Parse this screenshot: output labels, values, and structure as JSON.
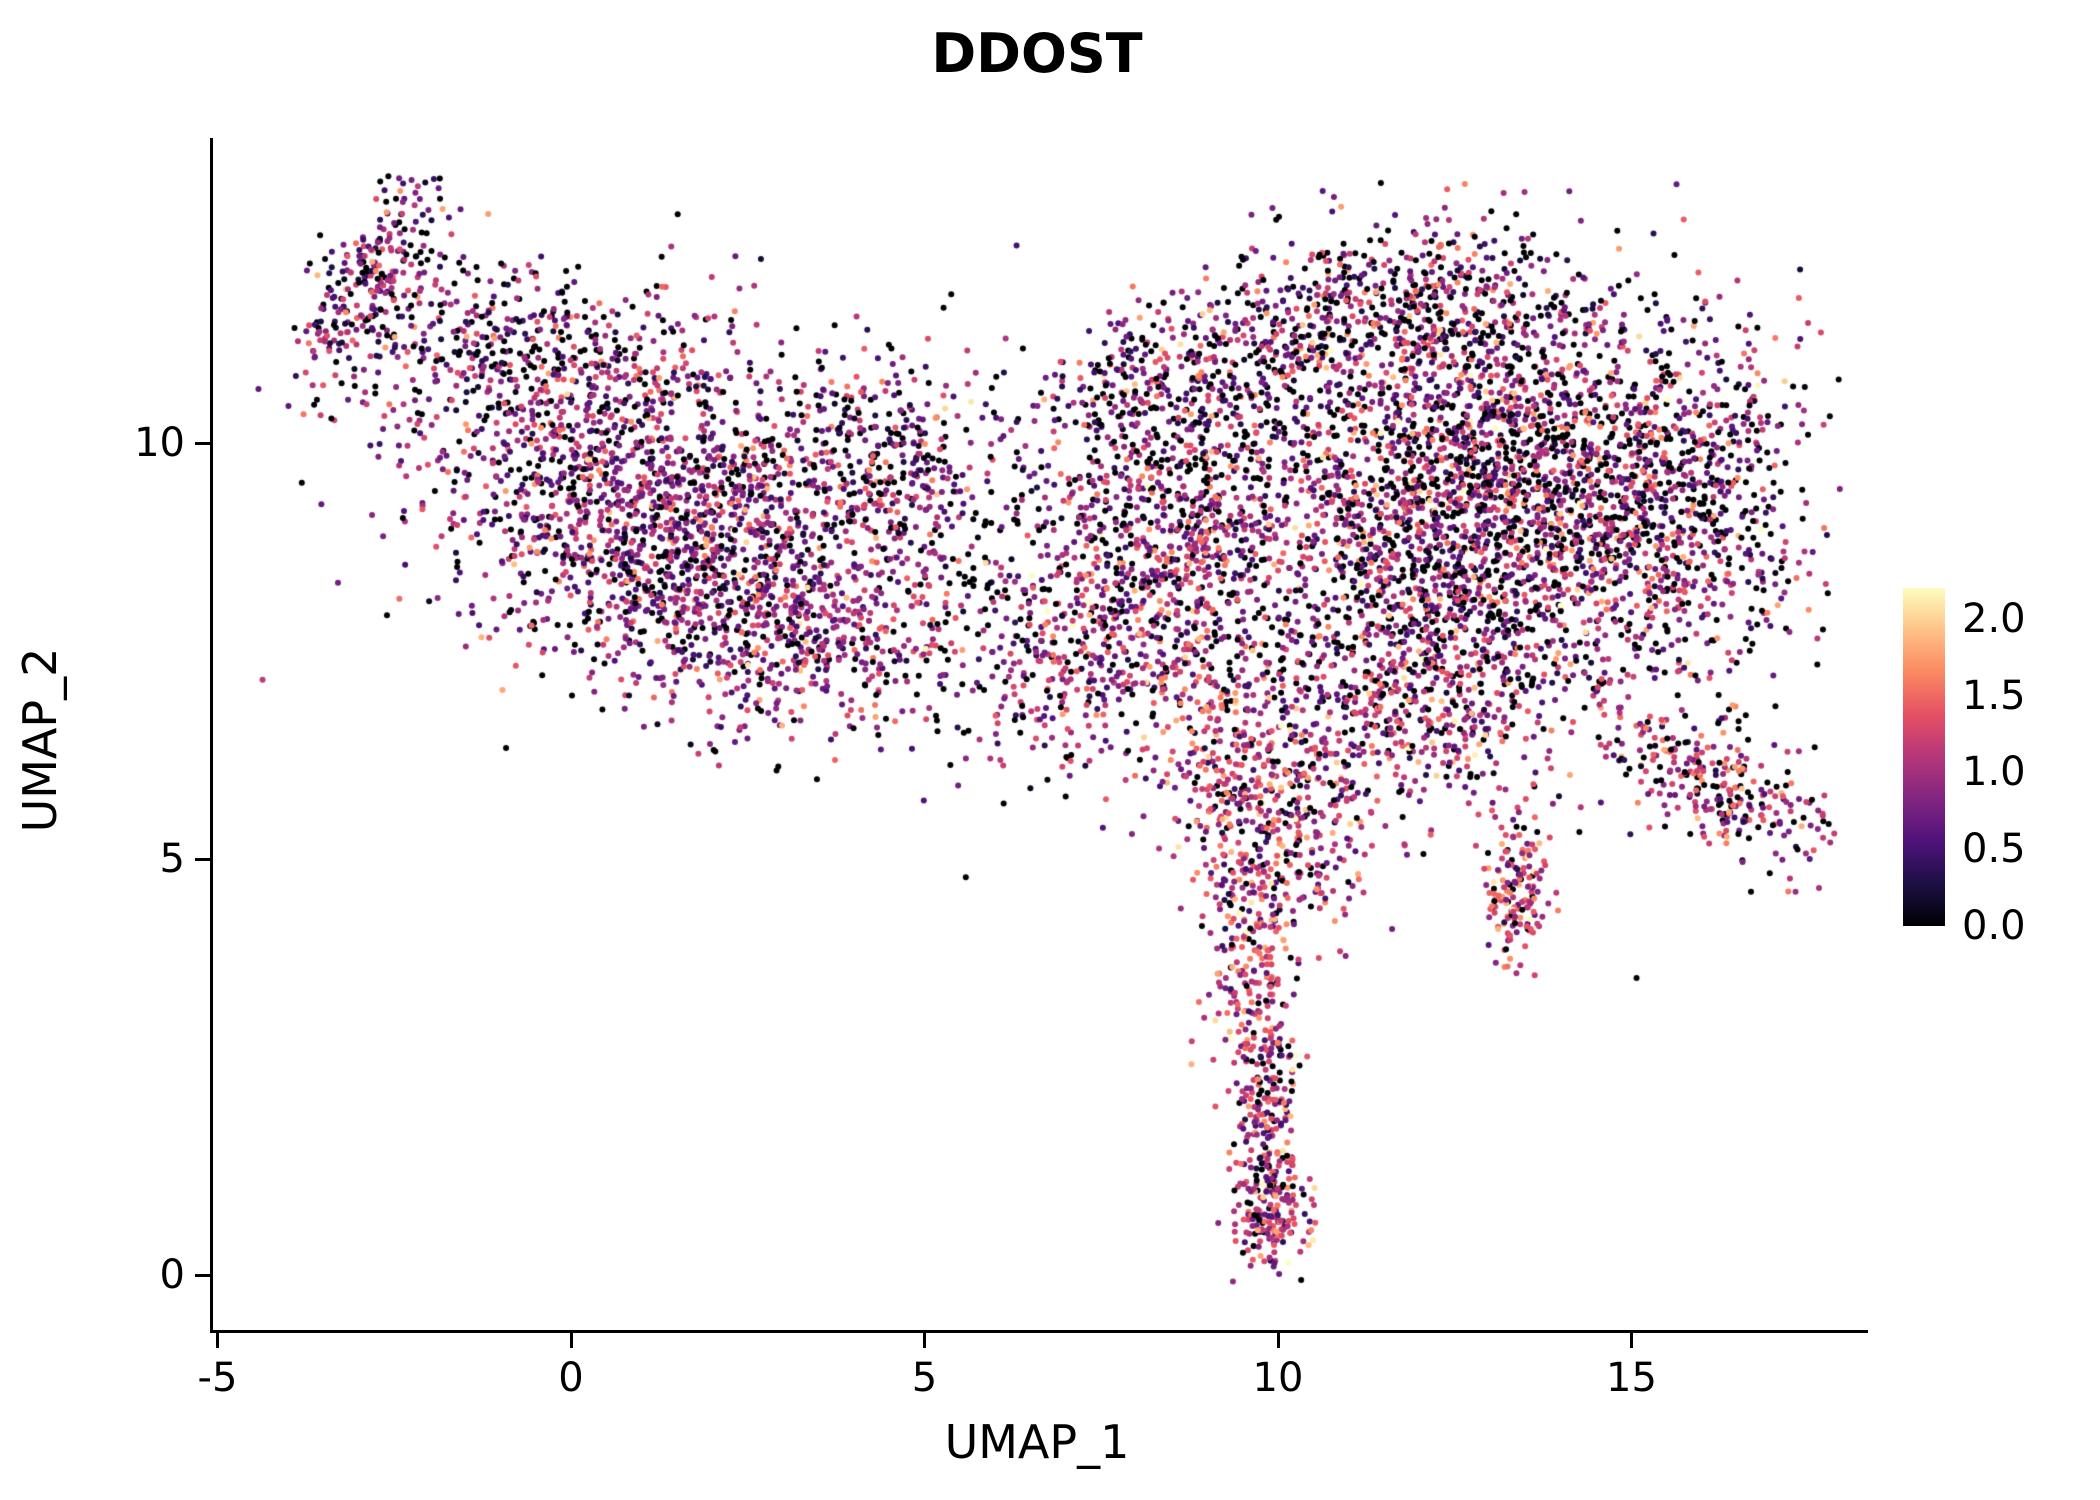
{
  "title": "DDOST",
  "axes": {
    "xlabel": "UMAP_1",
    "ylabel": "UMAP_2",
    "x_ticks": [
      -5,
      0,
      5,
      10,
      15
    ],
    "y_ticks": [
      0,
      5,
      10
    ],
    "x_range": [
      -5.1,
      18.3
    ],
    "y_range": [
      -0.7,
      13.6
    ]
  },
  "legend": {
    "ticks": [
      "2.0",
      "1.5",
      "1.0",
      "0.5",
      "0.0"
    ],
    "tick_values": [
      2.0,
      1.5,
      1.0,
      0.5,
      0.0
    ],
    "vmin": 0,
    "vmax": 2.2,
    "colormap_name": "magma",
    "colormap": [
      [
        0,
        "#000004"
      ],
      [
        0.125,
        "#1c1044"
      ],
      [
        0.25,
        "#4f127b"
      ],
      [
        0.375,
        "#812581"
      ],
      [
        0.5,
        "#b5367a"
      ],
      [
        0.625,
        "#e55064"
      ],
      [
        0.75,
        "#fb8861"
      ],
      [
        0.875,
        "#fec287"
      ],
      [
        1,
        "#fcfdbf"
      ]
    ]
  },
  "chart_data": {
    "type": "scatter",
    "title": "DDOST",
    "xlabel": "UMAP_1",
    "ylabel": "UMAP_2",
    "xlim": [
      -5.1,
      18.3
    ],
    "ylim": [
      -0.7,
      13.6
    ],
    "grid": false,
    "legend_position": "right",
    "color_encoding": "expression value 0.0 - 2.2 on magma colormap",
    "point_radius_px": 3.0,
    "seed": 42,
    "clusters": [
      {
        "name": "left-tail-top",
        "cx": -2.9,
        "cy": 11.9,
        "sx": 0.35,
        "sy": 0.75,
        "rot": -35,
        "n": 260,
        "zero_frac": 0.22,
        "vmean": 0.85,
        "vsd": 0.45
      },
      {
        "name": "left-top-strip",
        "cx": -1.1,
        "cy": 11.15,
        "sx": 1.05,
        "sy": 0.5,
        "rot": -8,
        "n": 260,
        "zero_frac": 0.3,
        "vmean": 0.8,
        "vsd": 0.45
      },
      {
        "name": "left-main",
        "cx": 0.9,
        "cy": 9.5,
        "sx": 1.55,
        "sy": 1.05,
        "rot": -12,
        "n": 1500,
        "zero_frac": 0.2,
        "vmean": 0.9,
        "vsd": 0.42
      },
      {
        "name": "left-lower",
        "cx": 2.9,
        "cy": 8.1,
        "sx": 1.25,
        "sy": 0.85,
        "rot": -15,
        "n": 750,
        "zero_frac": 0.2,
        "vmean": 0.9,
        "vsd": 0.42
      },
      {
        "name": "left-right-arm",
        "cx": 4.4,
        "cy": 9.7,
        "sx": 0.8,
        "sy": 0.7,
        "rot": 0,
        "n": 320,
        "zero_frac": 0.25,
        "vmean": 0.85,
        "vsd": 0.45
      },
      {
        "name": "bridge-sparse",
        "cx": 6.0,
        "cy": 8.2,
        "sx": 0.8,
        "sy": 1.0,
        "rot": 0,
        "n": 170,
        "zero_frac": 0.3,
        "vmean": 0.8,
        "vsd": 0.5
      },
      {
        "name": "mid-lower-bridge",
        "cx": 7.0,
        "cy": 7.4,
        "sx": 0.6,
        "sy": 0.55,
        "rot": 0,
        "n": 160,
        "zero_frac": 0.2,
        "vmean": 1.0,
        "vsd": 0.45
      },
      {
        "name": "mid-cluster",
        "cx": 8.4,
        "cy": 8.7,
        "sx": 1.0,
        "sy": 1.15,
        "rot": 0,
        "n": 950,
        "zero_frac": 0.22,
        "vmean": 0.95,
        "vsd": 0.45
      },
      {
        "name": "mid-top-arc",
        "cx": 8.2,
        "cy": 10.7,
        "sx": 1.0,
        "sy": 0.45,
        "rot": 10,
        "n": 200,
        "zero_frac": 0.3,
        "vmean": 0.85,
        "vsd": 0.5
      },
      {
        "name": "top-sparse",
        "cx": 9.8,
        "cy": 11.1,
        "sx": 0.9,
        "sy": 0.5,
        "rot": 15,
        "n": 160,
        "zero_frac": 0.3,
        "vmean": 0.9,
        "vsd": 0.5
      },
      {
        "name": "right-main",
        "cx": 12.9,
        "cy": 9.3,
        "sx": 1.8,
        "sy": 1.35,
        "rot": 0,
        "n": 2900,
        "zero_frac": 0.26,
        "vmean": 0.95,
        "vsd": 0.5
      },
      {
        "name": "right-top",
        "cx": 12.0,
        "cy": 11.6,
        "sx": 1.25,
        "sy": 0.55,
        "rot": 0,
        "n": 420,
        "zero_frac": 0.3,
        "vmean": 0.9,
        "vsd": 0.5
      },
      {
        "name": "right-edge",
        "cx": 15.9,
        "cy": 9.2,
        "sx": 0.85,
        "sy": 1.2,
        "rot": 0,
        "n": 480,
        "zero_frac": 0.28,
        "vmean": 0.9,
        "vsd": 0.5
      },
      {
        "name": "right-lower",
        "cx": 11.9,
        "cy": 6.8,
        "sx": 1.2,
        "sy": 0.65,
        "rot": 0,
        "n": 420,
        "zero_frac": 0.22,
        "vmean": 1.0,
        "vsd": 0.45
      },
      {
        "name": "right-hook",
        "cx": 16.3,
        "cy": 5.8,
        "sx": 0.8,
        "sy": 0.32,
        "rot": -28,
        "n": 260,
        "zero_frac": 0.2,
        "vmean": 1.0,
        "vsd": 0.45
      },
      {
        "name": "small-dense-blob",
        "cx": 13.4,
        "cy": 4.6,
        "sx": 0.22,
        "sy": 0.42,
        "rot": 0,
        "n": 150,
        "zero_frac": 0.1,
        "vmean": 1.25,
        "vsd": 0.4
      },
      {
        "name": "spike-top",
        "cx": 9.4,
        "cy": 6.1,
        "sx": 0.55,
        "sy": 0.8,
        "rot": 0,
        "n": 300,
        "zero_frac": 0.12,
        "vmean": 1.15,
        "vsd": 0.45
      },
      {
        "name": "spike-right-branch",
        "cx": 10.4,
        "cy": 5.1,
        "sx": 0.45,
        "sy": 0.6,
        "rot": -20,
        "n": 180,
        "zero_frac": 0.12,
        "vmean": 1.15,
        "vsd": 0.45
      },
      {
        "name": "spike-mid",
        "cx": 9.6,
        "cy": 3.8,
        "sx": 0.32,
        "sy": 0.85,
        "rot": 5,
        "n": 240,
        "zero_frac": 0.12,
        "vmean": 1.2,
        "vsd": 0.45
      },
      {
        "name": "spike-low",
        "cx": 9.85,
        "cy": 1.9,
        "sx": 0.22,
        "sy": 0.6,
        "rot": 0,
        "n": 170,
        "zero_frac": 0.12,
        "vmean": 1.1,
        "vsd": 0.45
      },
      {
        "name": "spike-bottom-blob",
        "cx": 9.9,
        "cy": 0.75,
        "sx": 0.28,
        "sy": 0.33,
        "rot": 0,
        "n": 170,
        "zero_frac": 0.12,
        "vmean": 1.1,
        "vsd": 0.5
      }
    ]
  }
}
